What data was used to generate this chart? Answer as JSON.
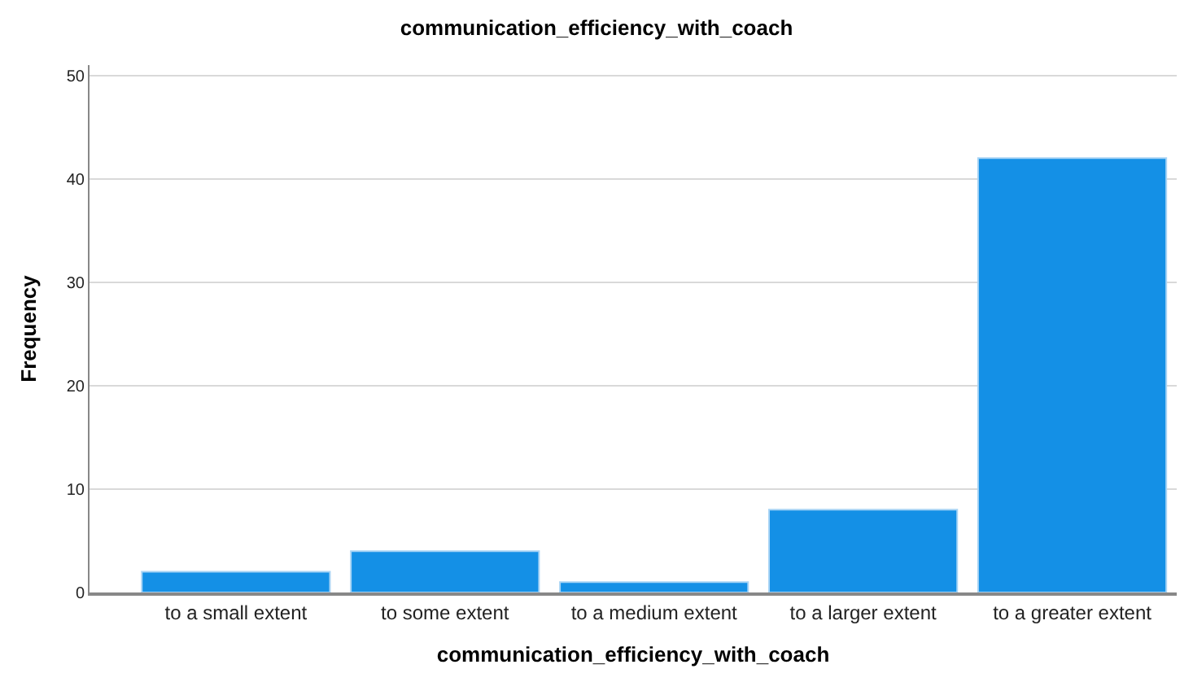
{
  "chart_data": {
    "type": "bar",
    "title": "communication_efficiency_with_coach",
    "xlabel": "communication_efficiency_with_coach",
    "ylabel": "Frequency",
    "categories": [
      "to a small extent",
      "to some extent",
      "to a medium extent",
      "to a larger extent",
      "to a greater extent"
    ],
    "values": [
      2,
      4,
      1,
      8,
      42
    ],
    "color": "#1490e6",
    "ylim": [
      0,
      51
    ],
    "yticks": [
      0,
      10,
      20,
      30,
      40,
      50
    ],
    "grid": "y"
  }
}
